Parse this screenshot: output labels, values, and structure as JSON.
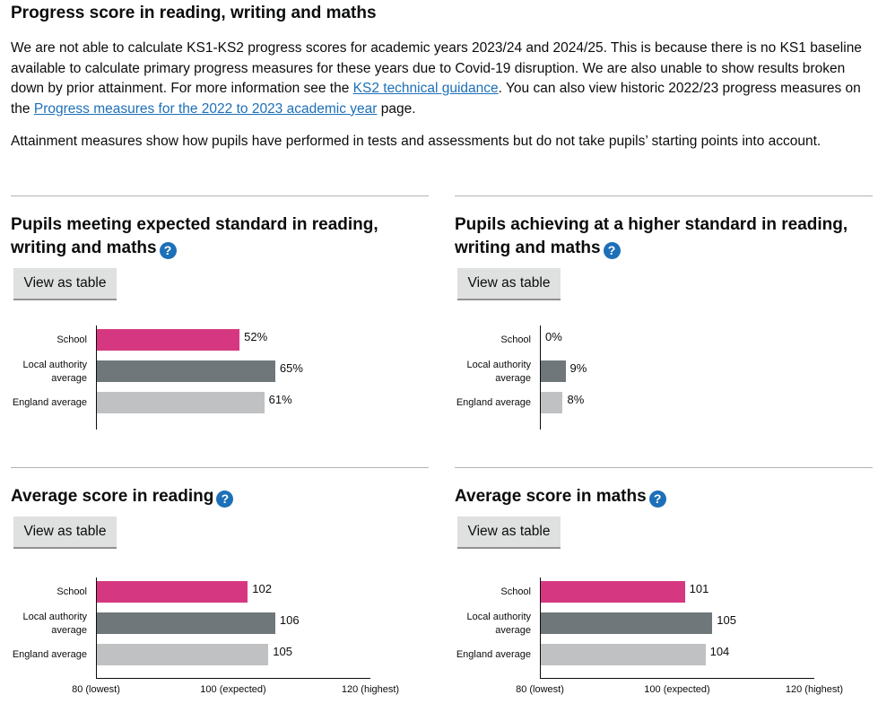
{
  "page": {
    "title": "Progress score in reading, writing and maths",
    "intro_1": "We are not able to calculate KS1-KS2 progress scores for academic years 2023/24 and 2024/25. This is because there is no KS1 baseline available to calculate primary progress measures for these years due to Covid-19 disruption. We are also unable to show results broken down by prior attainment. For more information see the ",
    "intro_link_1": "KS2 technical guidance",
    "intro_2": ". You can also view historic 2022/23 progress measures on the ",
    "intro_link_2": "Progress measures for the 2022 to 2023 academic year",
    "intro_3": " page.",
    "attainment_note": "Attainment measures show how pupils have performed in tests and assessments but do not take pupils’ starting points into account.",
    "help_icon": "?",
    "view_table_label": "View as table"
  },
  "colors": {
    "school": "#d53880",
    "local_authority": "#6f777b",
    "england": "#bfc1c3",
    "link": "#1d70b8",
    "help": "#1d70b8"
  },
  "chart_data": [
    {
      "type": "bar",
      "title": "Pupils meeting expected standard in reading, writing and maths",
      "categories": [
        "School",
        "Local authority average",
        "England average"
      ],
      "values": [
        52,
        65,
        61
      ],
      "value_labels": [
        "52%",
        "65%",
        "61%"
      ],
      "xlim": [
        0,
        100
      ]
    },
    {
      "type": "bar",
      "title": "Pupils achieving at a higher standard in reading, writing and maths",
      "categories": [
        "School",
        "Local authority average",
        "England average"
      ],
      "values": [
        0,
        9,
        8
      ],
      "value_labels": [
        "0%",
        "9%",
        "8%"
      ],
      "xlim": [
        0,
        100
      ]
    },
    {
      "type": "bar",
      "title": "Average score in reading",
      "categories": [
        "School",
        "Local authority average",
        "England average"
      ],
      "values": [
        102,
        106,
        105
      ],
      "value_labels": [
        "102",
        "106",
        "105"
      ],
      "xlim": [
        80,
        120
      ],
      "xticks": [
        "80 (lowest)",
        "100 (expected)",
        "120 (highest)"
      ]
    },
    {
      "type": "bar",
      "title": "Average score in maths",
      "categories": [
        "School",
        "Local authority average",
        "England average"
      ],
      "values": [
        101,
        105,
        104
      ],
      "value_labels": [
        "101",
        "105",
        "104"
      ],
      "xlim": [
        80,
        120
      ],
      "xticks": [
        "80 (lowest)",
        "100 (expected)",
        "120 (highest)"
      ]
    }
  ]
}
